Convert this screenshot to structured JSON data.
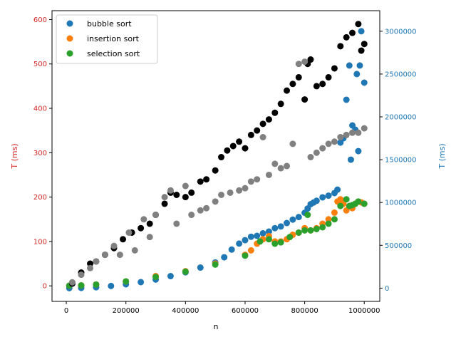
{
  "chart_data": {
    "type": "scatter",
    "xlabel": "n",
    "ylabel_left": "T (ms)",
    "ylabel_right": "T (ms)",
    "xlim": [
      -48000,
      1052000
    ],
    "ylim_left": [
      -35,
      620
    ],
    "ylim_right": [
      -155000,
      3240000
    ],
    "x_ticks": [
      0,
      200000,
      400000,
      600000,
      800000,
      1000000
    ],
    "x_tick_labels": [
      "0",
      "200000",
      "400000",
      "600000",
      "800000",
      "1000000"
    ],
    "y_left_ticks": [
      0,
      100,
      200,
      300,
      400,
      500,
      600
    ],
    "y_left_tick_labels": [
      "0",
      "100",
      "200",
      "300",
      "400",
      "500",
      "600"
    ],
    "y_right_ticks": [
      0,
      500000,
      1000000,
      1500000,
      2000000,
      2500000,
      3000000
    ],
    "y_right_tick_labels": [
      "0",
      "500000",
      "1000000",
      "1500000",
      "2000000",
      "2500000",
      "3000000"
    ],
    "grid": false,
    "legend_placement": "top-left",
    "colors": {
      "left_axis": "#d62728",
      "right_axis": "#1f77b4",
      "bubble": "#1f77b4",
      "insertion": "#ff7f0e",
      "selection": "#2ca02c",
      "black": "#000000",
      "gray": "#808080"
    },
    "series": [
      {
        "name": "bubble sort",
        "axis": "right",
        "color": "#1f77b4",
        "points": [
          [
            10000,
            100
          ],
          [
            50000,
            2000
          ],
          [
            100000,
            10000
          ],
          [
            150000,
            25000
          ],
          [
            200000,
            45000
          ],
          [
            250000,
            70000
          ],
          [
            300000,
            100000
          ],
          [
            350000,
            140000
          ],
          [
            400000,
            185000
          ],
          [
            450000,
            240000
          ],
          [
            500000,
            300000
          ],
          [
            530000,
            360000
          ],
          [
            555000,
            450000
          ],
          [
            580000,
            520000
          ],
          [
            600000,
            560000
          ],
          [
            620000,
            600000
          ],
          [
            640000,
            610000
          ],
          [
            660000,
            640000
          ],
          [
            680000,
            660000
          ],
          [
            700000,
            700000
          ],
          [
            720000,
            720000
          ],
          [
            740000,
            760000
          ],
          [
            760000,
            800000
          ],
          [
            780000,
            830000
          ],
          [
            800000,
            880000
          ],
          [
            810000,
            930000
          ],
          [
            820000,
            980000
          ],
          [
            830000,
            1000000
          ],
          [
            840000,
            1020000
          ],
          [
            860000,
            1060000
          ],
          [
            880000,
            1080000
          ],
          [
            900000,
            1110000
          ],
          [
            910000,
            1150000
          ],
          [
            920000,
            1700000
          ],
          [
            930000,
            1750000
          ],
          [
            940000,
            2200000
          ],
          [
            950000,
            2600000
          ],
          [
            955000,
            1500000
          ],
          [
            960000,
            1900000
          ],
          [
            970000,
            1850000
          ],
          [
            975000,
            2500000
          ],
          [
            980000,
            1600000
          ],
          [
            985000,
            2600000
          ],
          [
            990000,
            3000000
          ],
          [
            1000000,
            2400000
          ]
        ]
      },
      {
        "name": "insertion sort",
        "axis": "left",
        "color": "#ff7f0e",
        "points": [
          [
            10000,
            0.5
          ],
          [
            50000,
            1
          ],
          [
            100000,
            3
          ],
          [
            200000,
            10
          ],
          [
            300000,
            22
          ],
          [
            400000,
            33
          ],
          [
            500000,
            50
          ],
          [
            600000,
            70
          ],
          [
            620000,
            80
          ],
          [
            640000,
            95
          ],
          [
            660000,
            105
          ],
          [
            680000,
            112
          ],
          [
            700000,
            100
          ],
          [
            720000,
            100
          ],
          [
            740000,
            105
          ],
          [
            760000,
            115
          ],
          [
            780000,
            120
          ],
          [
            800000,
            130
          ],
          [
            820000,
            125
          ],
          [
            840000,
            130
          ],
          [
            860000,
            140
          ],
          [
            880000,
            150
          ],
          [
            900000,
            165
          ],
          [
            910000,
            190
          ],
          [
            920000,
            195
          ],
          [
            930000,
            185
          ],
          [
            940000,
            170
          ],
          [
            950000,
            180
          ],
          [
            960000,
            175
          ],
          [
            970000,
            185
          ],
          [
            980000,
            190
          ],
          [
            990000,
            188
          ],
          [
            1000000,
            185
          ]
        ]
      },
      {
        "name": "selection sort",
        "axis": "left",
        "color": "#2ca02c",
        "points": [
          [
            10000,
            0.5
          ],
          [
            50000,
            1
          ],
          [
            100000,
            3
          ],
          [
            200000,
            10
          ],
          [
            300000,
            20
          ],
          [
            400000,
            32
          ],
          [
            500000,
            48
          ],
          [
            600000,
            68
          ],
          [
            650000,
            100
          ],
          [
            680000,
            105
          ],
          [
            700000,
            95
          ],
          [
            720000,
            98
          ],
          [
            750000,
            110
          ],
          [
            780000,
            120
          ],
          [
            800000,
            125
          ],
          [
            810000,
            160
          ],
          [
            820000,
            125
          ],
          [
            840000,
            128
          ],
          [
            860000,
            132
          ],
          [
            880000,
            140
          ],
          [
            900000,
            150
          ],
          [
            920000,
            180
          ],
          [
            940000,
            195
          ],
          [
            950000,
            180
          ],
          [
            960000,
            182
          ],
          [
            970000,
            185
          ],
          [
            980000,
            190
          ],
          [
            1000000,
            185
          ]
        ]
      },
      {
        "axis": "left",
        "color": "#000000",
        "points": [
          [
            20000,
            5
          ],
          [
            50000,
            30
          ],
          [
            80000,
            50
          ],
          [
            100000,
            55
          ],
          [
            130000,
            70
          ],
          [
            160000,
            85
          ],
          [
            190000,
            105
          ],
          [
            220000,
            120
          ],
          [
            250000,
            130
          ],
          [
            280000,
            140
          ],
          [
            300000,
            160
          ],
          [
            330000,
            185
          ],
          [
            350000,
            210
          ],
          [
            370000,
            205
          ],
          [
            400000,
            200
          ],
          [
            420000,
            210
          ],
          [
            450000,
            235
          ],
          [
            470000,
            240
          ],
          [
            500000,
            260
          ],
          [
            520000,
            290
          ],
          [
            540000,
            305
          ],
          [
            560000,
            315
          ],
          [
            580000,
            325
          ],
          [
            600000,
            310
          ],
          [
            620000,
            340
          ],
          [
            640000,
            350
          ],
          [
            660000,
            365
          ],
          [
            680000,
            375
          ],
          [
            700000,
            390
          ],
          [
            720000,
            410
          ],
          [
            740000,
            440
          ],
          [
            760000,
            455
          ],
          [
            780000,
            470
          ],
          [
            800000,
            420
          ],
          [
            810000,
            500
          ],
          [
            820000,
            510
          ],
          [
            840000,
            450
          ],
          [
            860000,
            455
          ],
          [
            880000,
            470
          ],
          [
            900000,
            490
          ],
          [
            920000,
            540
          ],
          [
            940000,
            560
          ],
          [
            960000,
            570
          ],
          [
            980000,
            590
          ],
          [
            990000,
            530
          ],
          [
            1000000,
            545
          ]
        ]
      },
      {
        "axis": "left",
        "color": "#808080",
        "points": [
          [
            20000,
            8
          ],
          [
            50000,
            25
          ],
          [
            80000,
            40
          ],
          [
            100000,
            55
          ],
          [
            130000,
            70
          ],
          [
            160000,
            90
          ],
          [
            180000,
            70
          ],
          [
            210000,
            120
          ],
          [
            230000,
            80
          ],
          [
            260000,
            150
          ],
          [
            280000,
            110
          ],
          [
            300000,
            160
          ],
          [
            330000,
            200
          ],
          [
            350000,
            215
          ],
          [
            370000,
            140
          ],
          [
            400000,
            225
          ],
          [
            420000,
            160
          ],
          [
            450000,
            170
          ],
          [
            470000,
            175
          ],
          [
            500000,
            190
          ],
          [
            520000,
            205
          ],
          [
            550000,
            210
          ],
          [
            580000,
            215
          ],
          [
            600000,
            220
          ],
          [
            620000,
            235
          ],
          [
            640000,
            240
          ],
          [
            660000,
            335
          ],
          [
            680000,
            250
          ],
          [
            700000,
            275
          ],
          [
            720000,
            265
          ],
          [
            740000,
            270
          ],
          [
            760000,
            320
          ],
          [
            780000,
            500
          ],
          [
            800000,
            505
          ],
          [
            820000,
            290
          ],
          [
            840000,
            300
          ],
          [
            860000,
            310
          ],
          [
            880000,
            320
          ],
          [
            900000,
            325
          ],
          [
            920000,
            335
          ],
          [
            940000,
            340
          ],
          [
            960000,
            345
          ],
          [
            980000,
            345
          ],
          [
            1000000,
            355
          ]
        ]
      }
    ]
  }
}
